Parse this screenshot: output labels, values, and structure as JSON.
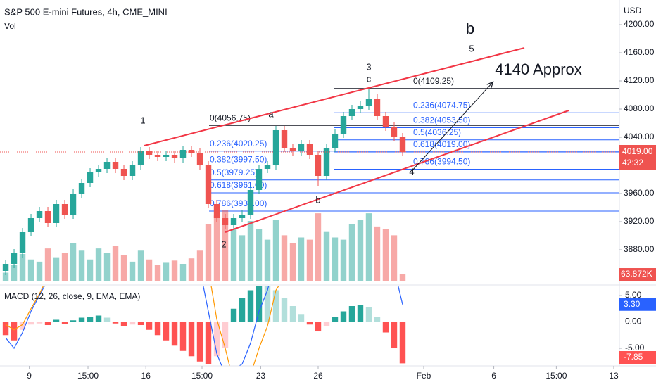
{
  "chart_data": {
    "type": "candlestick",
    "title": "S&P 500 E-mini Futures, 4h, CME_MINI",
    "volume_title": "Vol",
    "currency": "USD",
    "xlim": [
      -0.67,
      72.67
    ],
    "xticks": [
      {
        "value": 2.8,
        "label": "9"
      },
      {
        "value": 9.75,
        "label": "15:00"
      },
      {
        "value": 16.6,
        "label": "16"
      },
      {
        "value": 23.25,
        "label": "15:00"
      },
      {
        "value": 30.2,
        "label": "23"
      },
      {
        "value": 37,
        "label": "26"
      },
      {
        "value": 49.5,
        "label": "Feb"
      },
      {
        "value": 57.8,
        "label": "6"
      },
      {
        "value": 65.2,
        "label": "15:00"
      },
      {
        "value": 72,
        "label": "13"
      }
    ],
    "ylim": [
      3835,
      4235
    ],
    "yticks": [
      {
        "value": 3880,
        "label": "3880.00"
      },
      {
        "value": 3920,
        "label": "3920.00"
      },
      {
        "value": 3960,
        "label": "3960.00"
      },
      {
        "value": 4040,
        "label": "4040.00"
      },
      {
        "value": 4080,
        "label": "4080.00"
      },
      {
        "value": 4120,
        "label": "4120.00"
      },
      {
        "value": 4160,
        "label": "4160.00"
      },
      {
        "value": 4200,
        "label": "4200.00"
      }
    ],
    "up_color": "#26a69a",
    "down_color": "#ef5350",
    "open": [
      3850,
      3860,
      3875,
      3905,
      3925,
      3935,
      3918,
      3945,
      3930,
      3960,
      3975,
      3990,
      3995,
      4005,
      3995,
      3985,
      4000,
      4020,
      4015,
      4012,
      4015,
      4010,
      4022,
      4018,
      4000,
      3945,
      3925,
      3915,
      3925,
      3930,
      3965,
      3995,
      4000,
      4050,
      4025,
      4020,
      4030,
      4015,
      3985,
      4025,
      4045,
      4070,
      4080,
      4085,
      4095,
      4070,
      4055,
      4040
    ],
    "high": [
      3866,
      3881,
      3911,
      3931,
      3941,
      3941,
      3951,
      3951,
      3966,
      3981,
      3996,
      4001,
      4011,
      4011,
      4001,
      4006,
      4026,
      4026,
      4021,
      4021,
      4021,
      4028,
      4028,
      4024,
      4006,
      3951,
      3931,
      3931,
      3936,
      3971,
      4001,
      4006,
      4056,
      4056,
      4031,
      4036,
      4036,
      4021,
      4031,
      4051,
      4076,
      4086,
      4091,
      4110,
      4101,
      4076,
      4061,
      4046
    ],
    "low": [
      3844,
      3854,
      3869,
      3899,
      3919,
      3912,
      3912,
      3924,
      3924,
      3954,
      3969,
      3984,
      3989,
      3989,
      3979,
      3979,
      3994,
      4009,
      4006,
      4006,
      4004,
      4004,
      4012,
      3994,
      3939,
      3919,
      3909,
      3909,
      3919,
      3924,
      3959,
      3989,
      3994,
      4019,
      4014,
      4014,
      4009,
      3970,
      3979,
      4019,
      4039,
      4064,
      4074,
      4079,
      4064,
      4049,
      4034,
      4013
    ],
    "close": [
      3860,
      3875,
      3905,
      3925,
      3935,
      3918,
      3945,
      3930,
      3960,
      3975,
      3990,
      3995,
      4005,
      3995,
      3985,
      4000,
      4020,
      4015,
      4012,
      4015,
      4010,
      4022,
      4018,
      4000,
      3945,
      3925,
      3915,
      3925,
      3930,
      3965,
      3995,
      4000,
      4050,
      4025,
      4020,
      4030,
      4015,
      3985,
      4025,
      4045,
      4070,
      4080,
      4085,
      4095,
      4070,
      4055,
      4040,
      4019
    ],
    "last_price": {
      "value": 4019,
      "label": "4019.00"
    },
    "countdown": "42:32",
    "volume": {
      "values": [
        80,
        150,
        250,
        200,
        180,
        300,
        220,
        260,
        350,
        280,
        200,
        300,
        260,
        320,
        240,
        180,
        280,
        200,
        150,
        170,
        190,
        160,
        210,
        280,
        520,
        600,
        650,
        480,
        420,
        550,
        480,
        380,
        560,
        420,
        350,
        400,
        380,
        620,
        450,
        400,
        380,
        520,
        560,
        620,
        500,
        480,
        420,
        63.872
      ],
      "ylim": [
        0,
        2560
      ],
      "last_label": {
        "value": 63.872,
        "label": "63.872K"
      }
    },
    "macd": {
      "title": "MACD (12, 26, close, 9, EMA, EMA)",
      "ylim": [
        -8.33,
        7
      ],
      "yticks": [
        {
          "value": 5,
          "label": "5.00"
        },
        {
          "value": 0,
          "label": "0.00"
        },
        {
          "value": -5,
          "label": "-5.00"
        }
      ],
      "histogram": [
        -2.5,
        -3.5,
        -1.5,
        -0.5,
        -0.3,
        -0.6,
        0.4,
        -0.4,
        0.3,
        0.8,
        1.0,
        1.2,
        0.8,
        -0.3,
        -0.8,
        -0.5,
        -0.6,
        -1.5,
        -2.5,
        -3.5,
        -4.5,
        -5.5,
        -6.5,
        -7.5,
        -8.0,
        -6.5,
        -5.0,
        2.5,
        4.5,
        6.0,
        7.0,
        6.8,
        6.0,
        4.5,
        3.0,
        1.5,
        -0.5,
        -1.8,
        -0.8,
        1.0,
        2.0,
        3.0,
        3.2,
        2.8,
        1.0,
        -2.0,
        -5.0,
        -7.85
      ],
      "macd": [
        -3,
        -5,
        -2,
        2,
        5,
        8,
        12,
        13,
        16,
        19,
        22,
        24,
        25,
        24,
        22,
        22,
        24,
        22,
        20,
        18,
        16,
        15,
        13,
        10,
        2,
        -6,
        -10,
        -9,
        -8,
        -4,
        2,
        6,
        12,
        13,
        13,
        14,
        12,
        8,
        9,
        11,
        14,
        17,
        19,
        21,
        20,
        16,
        10,
        3.3
      ],
      "signal": [
        -0.5,
        -1.5,
        -0.5,
        2.5,
        5.3,
        8.6,
        11.6,
        13.4,
        15.7,
        18.2,
        21,
        22.8,
        24.2,
        24.3,
        22.8,
        22.5,
        24.6,
        23.5,
        22.5,
        21.5,
        20.5,
        20.5,
        19.5,
        17.5,
        10,
        0.5,
        -5,
        -11.5,
        -12.5,
        -10,
        -5,
        -0.8,
        6,
        8.5,
        10,
        12.5,
        12.5,
        9.8,
        9.8,
        10,
        12,
        14,
        15.8,
        18.2,
        19,
        18,
        15,
        11.15
      ],
      "macd_color": "#2962ff",
      "signal_color": "#ff9800",
      "hist_colors": {
        "pos_rising": "#26a69a",
        "pos_falling": "#b2dfdb",
        "neg_falling": "#ff5252",
        "neg_rising": "#ffcdd2"
      },
      "macd_label": {
        "value": 3.3,
        "label": "3.30"
      },
      "hist_label": {
        "value": -7.85,
        "label": "-7.85"
      }
    },
    "fib_sets": [
      {
        "levels": [
          {
            "value": 4056.75,
            "label": "0(4056.75)"
          },
          {
            "value": 4020.25,
            "label": "0.236(4020.25)"
          },
          {
            "value": 3997.5,
            "label": "0.382(3997.50)"
          },
          {
            "value": 3979.25,
            "label": "0.5(3979.25)"
          },
          {
            "value": 3961,
            "label": "0.618(3961.00)"
          },
          {
            "value": 3935,
            "label": "0.786(3935.00)"
          }
        ]
      },
      {
        "levels": [
          {
            "value": 4109.25,
            "label": "0(4109.25)"
          },
          {
            "value": 4074.75,
            "label": "0.236(4074.75)"
          },
          {
            "value": 4053.5,
            "label": "0.382(4053.50)"
          },
          {
            "value": 4036.25,
            "label": "0.5(4036.25)"
          },
          {
            "value": 4019,
            "label": "0.618(4019.00)"
          },
          {
            "value": 3994.5,
            "label": "0.786(3994.50)"
          }
        ]
      }
    ],
    "annotations": [
      "1",
      "2",
      "3",
      "c",
      "a",
      "b",
      "b",
      "4",
      "5",
      "4140 Approx"
    ]
  }
}
